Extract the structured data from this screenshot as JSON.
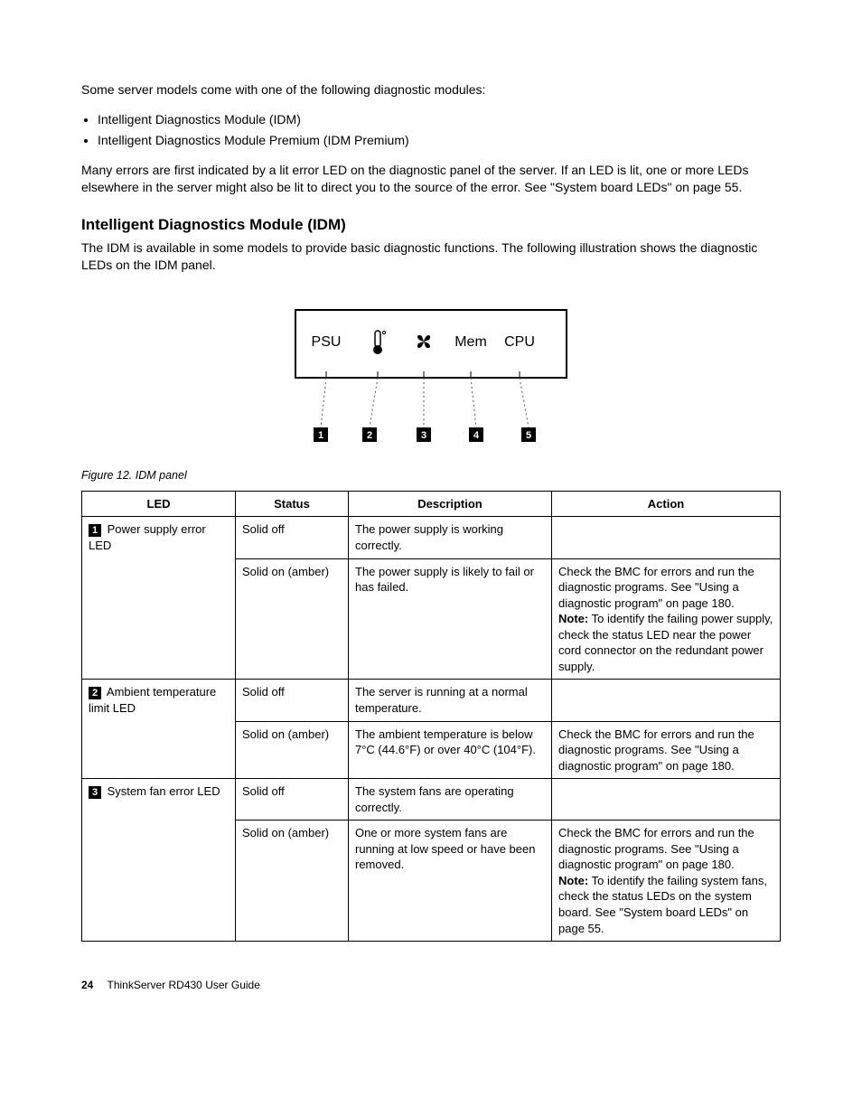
{
  "intro_para": "Some server models come with one of the following diagnostic modules:",
  "bullets": [
    "Intelligent Diagnostics Module (IDM)",
    "Intelligent Diagnostics Module Premium (IDM Premium)"
  ],
  "errors_para": "Many errors are first indicated by a lit error LED on the diagnostic panel of the server. If an LED is lit, one or more LEDs elsewhere in the server might also be lit to direct you to the source of the error. See \"System board LEDs\" on page 55.",
  "section_heading": "Intelligent Diagnostics Module (IDM)",
  "section_para": "The IDM is available in some models to provide basic diagnostic functions. The following illustration shows the diagnostic LEDs on the IDM panel.",
  "figure": {
    "caption": "Figure 12.  IDM panel",
    "labels": [
      "PSU",
      "",
      "",
      "Mem",
      "CPU"
    ],
    "callouts": [
      "1",
      "2",
      "3",
      "4",
      "5"
    ],
    "box_stroke": "#000000",
    "tick_stroke": "#555555"
  },
  "table": {
    "headers": [
      "LED",
      "Status",
      "Description",
      "Action"
    ],
    "groups": [
      {
        "led_num": "1",
        "led_label": "Power supply error LED",
        "rows": [
          {
            "status": "Solid off",
            "desc": "The power supply is working correctly.",
            "action": ""
          },
          {
            "status": "Solid on (amber)",
            "desc": "The power supply is likely to fail or has failed.",
            "action": "Check the BMC for errors and run the diagnostic programs. See \"Using a diagnostic program\" on page 180.\n<b>Note:</b> To identify the failing power supply, check the status LED near the power cord connector on the redundant power supply."
          }
        ]
      },
      {
        "led_num": "2",
        "led_label": "Ambient temperature limit LED",
        "rows": [
          {
            "status": "Solid off",
            "desc": "The server is running at a normal temperature.",
            "action": ""
          },
          {
            "status": "Solid on (amber)",
            "desc": "The ambient temperature is below 7°C (44.6°F) or over 40°C (104°F).",
            "action": "Check the BMC for errors and run the diagnostic programs. See \"Using a diagnostic program\" on page 180."
          }
        ]
      },
      {
        "led_num": "3",
        "led_label": "System fan error LED",
        "rows": [
          {
            "status": "Solid off",
            "desc": "The system fans are operating correctly.",
            "action": ""
          },
          {
            "status": "Solid on (amber)",
            "desc": "One or more system fans are running at low speed or have been removed.",
            "action": "Check the BMC for errors and run the diagnostic programs. See \"Using a diagnostic program\" on page 180.\n<b>Note:</b> To identify the failing system fans, check the status LEDs on the system board. See \"System board LEDs\" on page 55."
          }
        ]
      }
    ]
  },
  "footer": {
    "page": "24",
    "title": "ThinkServer RD430 User Guide"
  }
}
